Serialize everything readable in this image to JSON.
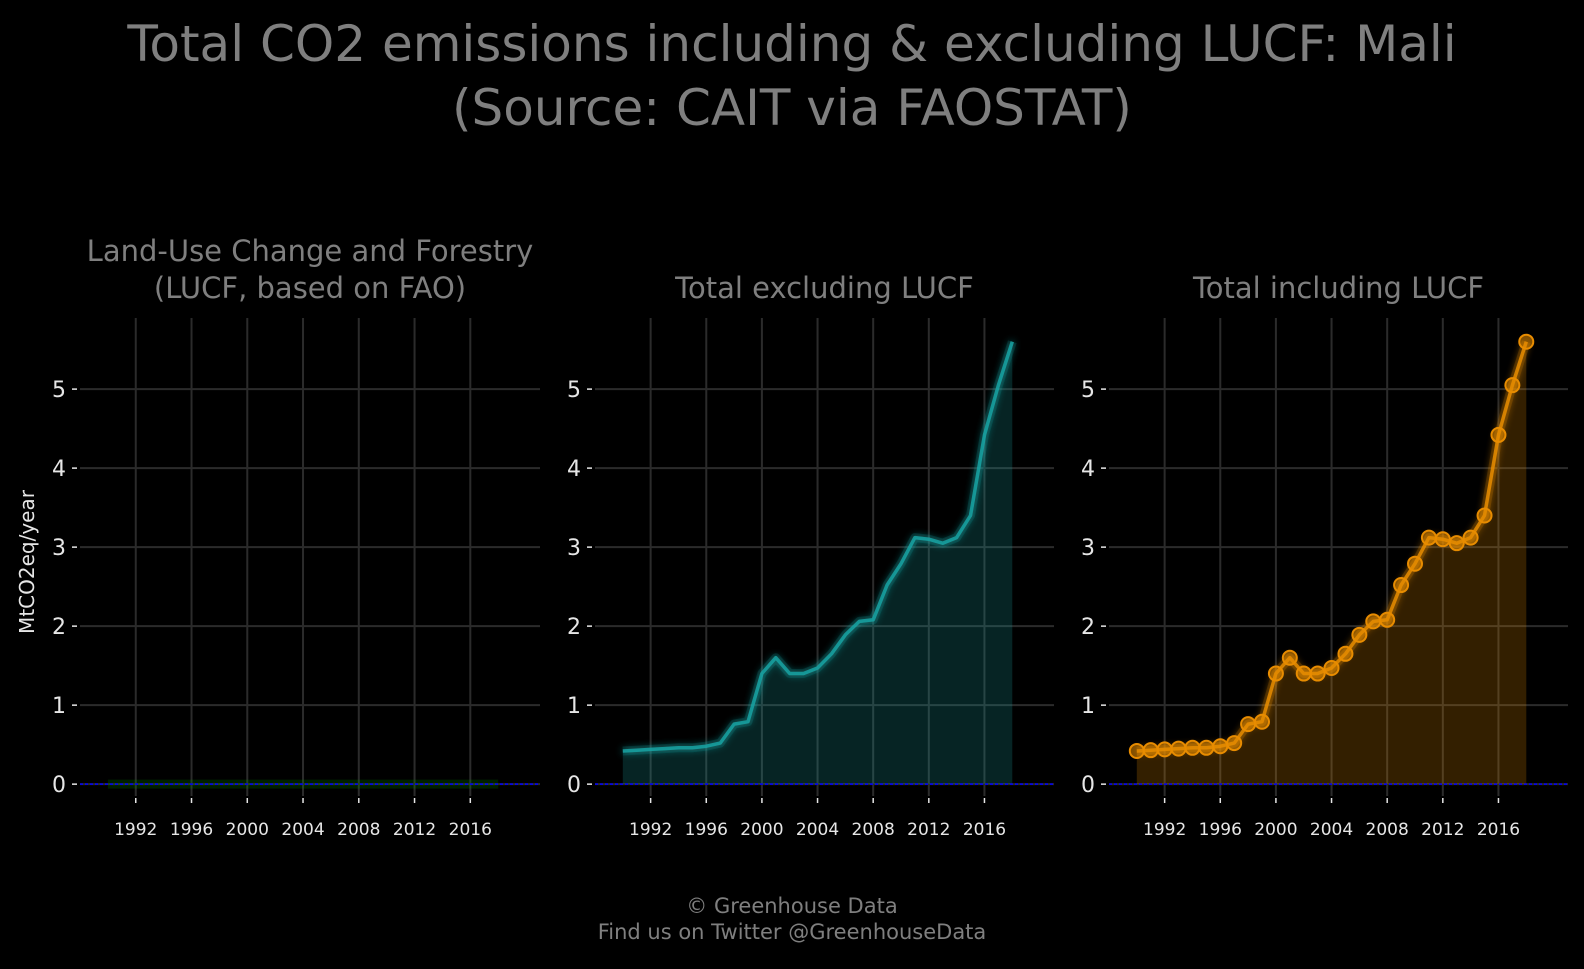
{
  "title": {
    "line1": "Total CO2 emissions including & excluding LUCF: Mali",
    "line2": "(Source: CAIT via FAOSTAT)"
  },
  "footer": {
    "line1": "© Greenhouse Data",
    "line2": "Find us on Twitter @GreenhouseData"
  },
  "colors": {
    "background": "#000000",
    "grid": "#2b2b2b",
    "text": "#7f7f7f",
    "tick_text": "#e6e6e6",
    "zero_line": "#0000ff",
    "lucf": "#00aa00",
    "excluding": "#1aa3a3",
    "including": "#e88c00"
  },
  "chart_data": [
    {
      "type": "area",
      "title": "Land-Use Change and Forestry (LUCF, based on FAO)",
      "title_lines": [
        "Land-Use Change and Forestry",
        "(LUCF, based on FAO)"
      ],
      "ylabel": "MtCO2eq/year",
      "xlabel": "",
      "x_ticks": [
        1992,
        1996,
        2000,
        2004,
        2008,
        2012,
        2016
      ],
      "y_ticks": [
        0,
        1,
        2,
        3,
        4,
        5
      ],
      "xlim": [
        1988,
        2021
      ],
      "ylim": [
        -0.15,
        5.9
      ],
      "grid": true,
      "series": [
        {
          "color": "#00aa00",
          "markers": false,
          "x": [
            1990,
            1991,
            1992,
            1993,
            1994,
            1995,
            1996,
            1997,
            1998,
            1999,
            2000,
            2001,
            2002,
            2003,
            2004,
            2005,
            2006,
            2007,
            2008,
            2009,
            2010,
            2011,
            2012,
            2013,
            2014,
            2015,
            2016,
            2017,
            2018
          ],
          "y": [
            0,
            0,
            0,
            0,
            0,
            0,
            0,
            0,
            0,
            0,
            0,
            0,
            0,
            0,
            0,
            0,
            0,
            0,
            0,
            0,
            0,
            0,
            0,
            0,
            0,
            0,
            0,
            0,
            0
          ]
        }
      ]
    },
    {
      "type": "area",
      "title": "Total excluding LUCF",
      "title_lines": [
        "Total excluding LUCF"
      ],
      "ylabel": "",
      "xlabel": "",
      "x_ticks": [
        1992,
        1996,
        2000,
        2004,
        2008,
        2012,
        2016
      ],
      "y_ticks": [
        0,
        1,
        2,
        3,
        4,
        5
      ],
      "xlim": [
        1988,
        2021
      ],
      "ylim": [
        -0.15,
        5.9
      ],
      "grid": true,
      "series": [
        {
          "color": "#1aa3a3",
          "markers": false,
          "x": [
            1990,
            1991,
            1992,
            1993,
            1994,
            1995,
            1996,
            1997,
            1998,
            1999,
            2000,
            2001,
            2002,
            2003,
            2004,
            2005,
            2006,
            2007,
            2008,
            2009,
            2010,
            2011,
            2012,
            2013,
            2014,
            2015,
            2016,
            2017,
            2018
          ],
          "y": [
            0.42,
            0.43,
            0.44,
            0.45,
            0.46,
            0.46,
            0.48,
            0.52,
            0.76,
            0.79,
            1.4,
            1.6,
            1.4,
            1.4,
            1.47,
            1.65,
            1.89,
            2.06,
            2.08,
            2.52,
            2.79,
            3.12,
            3.1,
            3.05,
            3.12,
            3.4,
            4.42,
            5.05,
            5.6
          ]
        }
      ]
    },
    {
      "type": "area",
      "title": "Total including LUCF",
      "title_lines": [
        "Total including LUCF"
      ],
      "ylabel": "",
      "xlabel": "",
      "x_ticks": [
        1992,
        1996,
        2000,
        2004,
        2008,
        2012,
        2016
      ],
      "y_ticks": [
        0,
        1,
        2,
        3,
        4,
        5
      ],
      "xlim": [
        1988,
        2021
      ],
      "ylim": [
        -0.15,
        5.9
      ],
      "grid": true,
      "series": [
        {
          "color": "#e88c00",
          "markers": true,
          "x": [
            1990,
            1991,
            1992,
            1993,
            1994,
            1995,
            1996,
            1997,
            1998,
            1999,
            2000,
            2001,
            2002,
            2003,
            2004,
            2005,
            2006,
            2007,
            2008,
            2009,
            2010,
            2011,
            2012,
            2013,
            2014,
            2015,
            2016,
            2017,
            2018
          ],
          "y": [
            0.42,
            0.43,
            0.44,
            0.45,
            0.46,
            0.46,
            0.48,
            0.52,
            0.76,
            0.79,
            1.4,
            1.6,
            1.4,
            1.4,
            1.47,
            1.65,
            1.89,
            2.06,
            2.08,
            2.52,
            2.79,
            3.12,
            3.1,
            3.05,
            3.12,
            3.4,
            4.42,
            5.05,
            5.6
          ]
        }
      ]
    }
  ]
}
